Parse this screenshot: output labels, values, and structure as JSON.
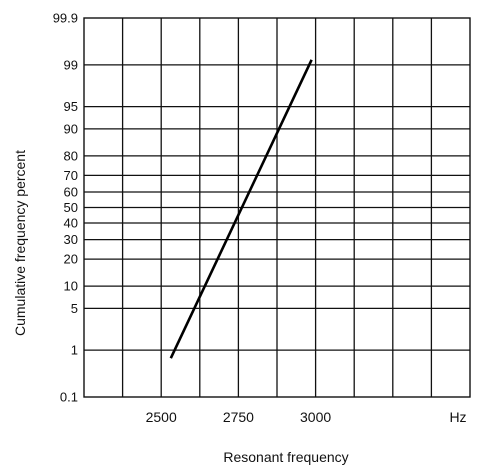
{
  "chart_data": {
    "type": "line",
    "title": "",
    "xlabel": "Resonant frequency",
    "ylabel": "Cumulative frequency percent",
    "x_unit": "Hz",
    "x_scale": "linear",
    "y_scale": "normal-probability",
    "xlim": [
      2250,
      3500
    ],
    "x_tick_labels": [
      {
        "value": 2500,
        "label": "2500"
      },
      {
        "value": 2750,
        "label": "2750"
      },
      {
        "value": 3000,
        "label": "3000"
      }
    ],
    "x_grid_values": [
      2375,
      2500,
      2625,
      2750,
      2875,
      3000,
      3125,
      3250,
      3375
    ],
    "y_ticks": [
      {
        "value": 0.1,
        "label": "0.1"
      },
      {
        "value": 1,
        "label": "1"
      },
      {
        "value": 5,
        "label": "5"
      },
      {
        "value": 10,
        "label": "10"
      },
      {
        "value": 20,
        "label": "20"
      },
      {
        "value": 30,
        "label": "30"
      },
      {
        "value": 40,
        "label": "40"
      },
      {
        "value": 50,
        "label": "50"
      },
      {
        "value": 60,
        "label": "60"
      },
      {
        "value": 70,
        "label": "70"
      },
      {
        "value": 80,
        "label": "80"
      },
      {
        "value": 90,
        "label": "90"
      },
      {
        "value": 95,
        "label": "95"
      },
      {
        "value": 99,
        "label": "99"
      },
      {
        "value": 99.9,
        "label": "99.9"
      }
    ],
    "grid": true,
    "series": [
      {
        "name": "",
        "color": "#000000",
        "x": [
          2531,
          2987
        ],
        "y": [
          0.7,
          99.2
        ]
      }
    ]
  }
}
